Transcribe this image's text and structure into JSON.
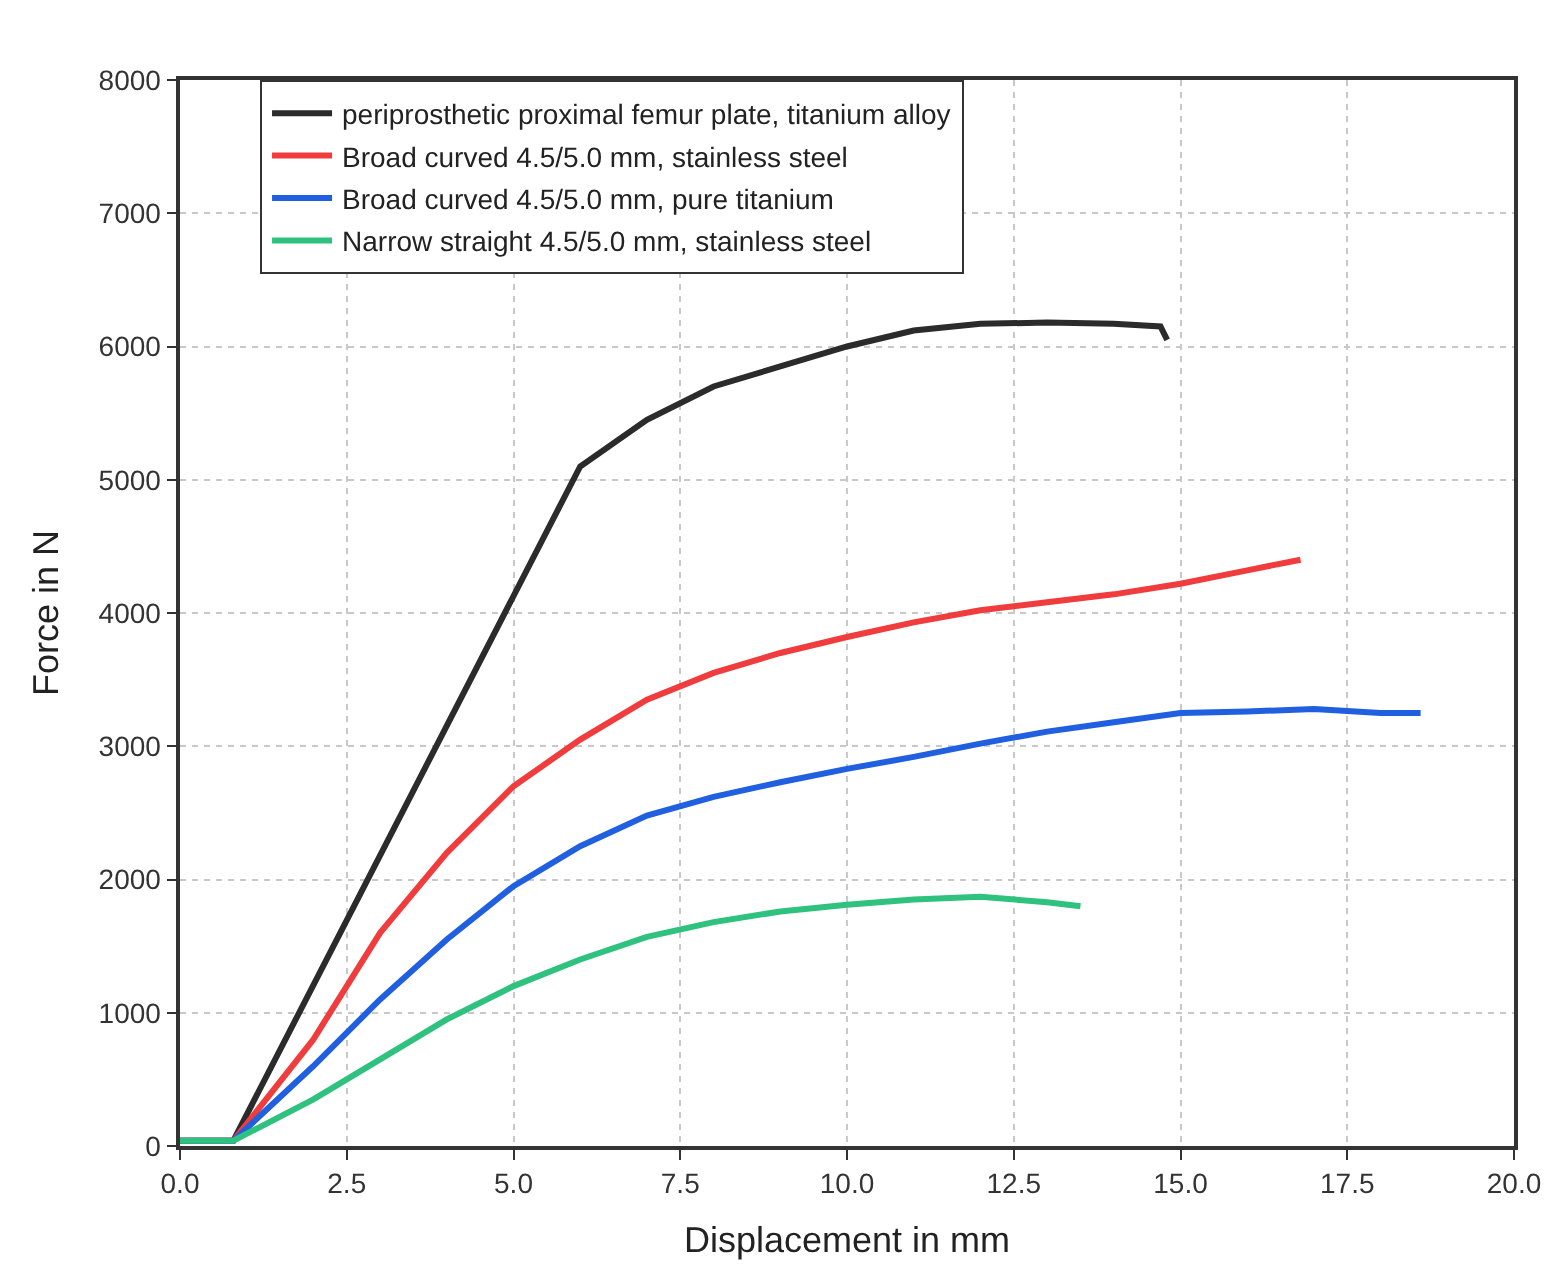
{
  "chart_data": {
    "type": "line",
    "xlabel": "Displacement in mm",
    "ylabel": "Force in N",
    "xlim": [
      0,
      20
    ],
    "xticks": [
      {
        "value": 0,
        "label": "0.0"
      },
      2.5,
      {
        "value": 5,
        "label": "5.0"
      },
      7.5,
      {
        "value": 10,
        "label": "10.0"
      },
      12.5,
      {
        "value": 15,
        "label": "15.0"
      },
      17.5,
      {
        "value": 20,
        "label": "20.0"
      }
    ],
    "ylim": [
      0,
      8000
    ],
    "yticks": [
      0,
      1000,
      2000,
      3000,
      4000,
      5000,
      6000,
      7000,
      8000
    ],
    "grid": true,
    "legend": "top left",
    "marker": "none",
    "line_style": "solid",
    "series": [
      {
        "name": "periprosthetic proximal femur plate, titanium alloy",
        "color": "#2b2b2b",
        "x": [
          0,
          0.8,
          6,
          7,
          8,
          9,
          10,
          11,
          12,
          13,
          14,
          14.7,
          14.8
        ],
        "values": [
          40,
          40,
          5100,
          5450,
          5700,
          5850,
          6000,
          6120,
          6170,
          6180,
          6170,
          6150,
          6050
        ]
      },
      {
        "name": "Broad curved 4.5/5.0 mm, stainless steel",
        "color": "#f03c3c",
        "x": [
          0,
          0.8,
          2,
          3,
          4,
          5,
          6,
          7,
          8,
          9,
          10,
          11,
          12,
          13,
          14,
          15,
          16,
          16.8
        ],
        "values": [
          40,
          40,
          800,
          1600,
          2200,
          2700,
          3050,
          3350,
          3550,
          3700,
          3820,
          3930,
          4020,
          4080,
          4140,
          4220,
          4320,
          4400
        ]
      },
      {
        "name": "Broad curved 4.5/5.0 mm, pure titanium",
        "color": "#1f5fe0",
        "x": [
          0,
          0.8,
          2,
          3,
          4,
          5,
          6,
          7,
          8,
          9,
          10,
          11,
          12,
          13,
          14,
          15,
          16,
          17,
          18,
          18.6
        ],
        "values": [
          40,
          40,
          600,
          1100,
          1550,
          1950,
          2250,
          2480,
          2620,
          2730,
          2830,
          2920,
          3020,
          3110,
          3180,
          3250,
          3260,
          3280,
          3250,
          3250
        ]
      },
      {
        "name": "Narrow straight 4.5/5.0 mm, stainless steel",
        "color": "#2ec27e",
        "x": [
          0,
          0.8,
          2,
          3,
          4,
          5,
          6,
          7,
          8,
          9,
          10,
          11,
          12,
          13,
          13.5
        ],
        "values": [
          40,
          40,
          350,
          650,
          950,
          1200,
          1400,
          1570,
          1680,
          1760,
          1810,
          1850,
          1870,
          1830,
          1800
        ]
      }
    ]
  }
}
